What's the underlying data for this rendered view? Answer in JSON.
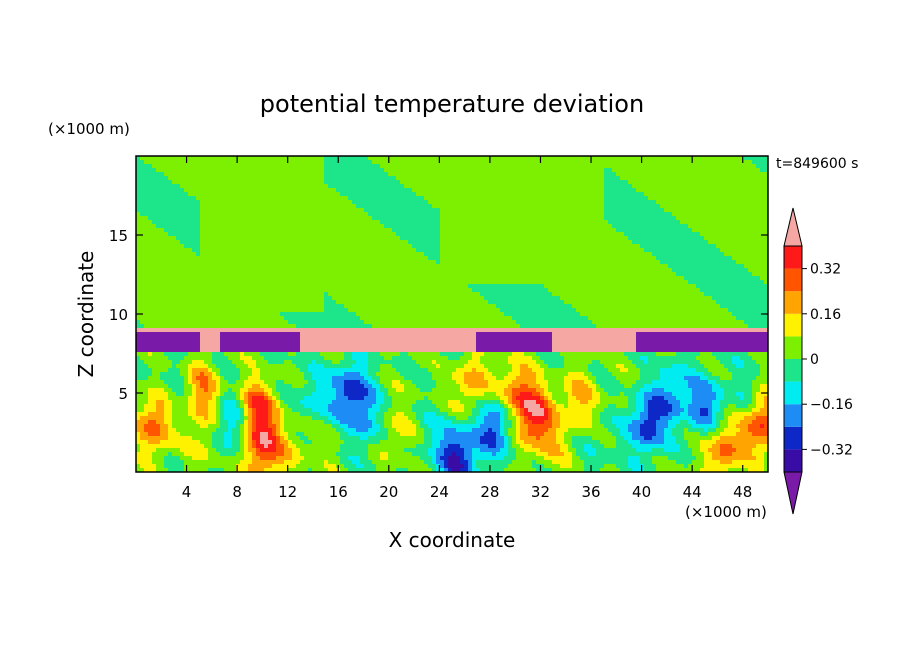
{
  "chart_data": {
    "type": "heatmap",
    "title": "potential temperature deviation",
    "xlabel": "X coordinate",
    "ylabel": "Z coordinate",
    "x_unit": "(×1000 m)",
    "y_unit": "(×1000 m)",
    "time_label": "t=849600 s",
    "xlim": [
      0,
      50
    ],
    "ylim": [
      0,
      20
    ],
    "x_ticks": [
      "4",
      "8",
      "12",
      "16",
      "20",
      "24",
      "28",
      "32",
      "36",
      "40",
      "44",
      "48"
    ],
    "x_tick_values": [
      4,
      8,
      12,
      16,
      20,
      24,
      28,
      32,
      36,
      40,
      44,
      48
    ],
    "y_ticks": [
      "5",
      "10",
      "15"
    ],
    "y_tick_values": [
      5,
      10,
      15
    ],
    "colorbar": {
      "levels": [
        -0.4,
        -0.32,
        -0.24,
        -0.16,
        -0.08,
        0,
        0.08,
        0.16,
        0.24,
        0.32,
        0.4
      ],
      "labels": [
        "0.32",
        "0.16",
        "0",
        "−0.16",
        "−0.32"
      ],
      "label_values": [
        0.32,
        0.16,
        0,
        -0.16,
        -0.32
      ],
      "colors": [
        "#7a1aa8",
        "#3a0ca6",
        "#0e28c8",
        "#1e8cf5",
        "#00ecf0",
        "#1de58a",
        "#7cf000",
        "#fff200",
        "#ffa400",
        "#ff5400",
        "#ff1a1a",
        "#f4a7a3"
      ]
    },
    "field_description": {
      "stratosphere_z_above_km": 9,
      "inversion_layer_z_km": [
        7.6,
        9.0
      ]
    }
  }
}
